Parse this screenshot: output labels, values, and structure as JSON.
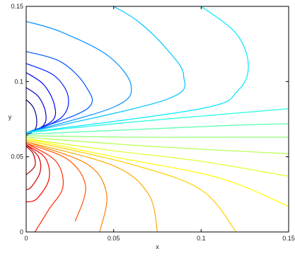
{
  "chart_data": {
    "type": "contour",
    "title": "",
    "xlabel": "x",
    "ylabel": "y",
    "xlim": [
      0,
      0.15
    ],
    "ylim": [
      0,
      0.15
    ],
    "x_ticks": [
      {
        "value": 0,
        "label": "0"
      },
      {
        "value": 0.05,
        "label": "0.05"
      },
      {
        "value": 0.1,
        "label": "0.1"
      },
      {
        "value": 0.15,
        "label": "0.15"
      }
    ],
    "y_ticks": [
      {
        "value": 0,
        "label": "0"
      },
      {
        "value": 0.05,
        "label": "0.05"
      },
      {
        "value": 0.1,
        "label": "0.1"
      },
      {
        "value": 0.15,
        "label": "0.15"
      }
    ],
    "grid": false,
    "colormap": "jet",
    "contours": [
      {
        "color": "#00008f",
        "points": [
          [
            0,
            0.088
          ],
          [
            0.004,
            0.083
          ],
          [
            0.006,
            0.075
          ],
          [
            0.005,
            0.068
          ],
          [
            0,
            0.064
          ]
        ]
      },
      {
        "color": "#0000c8",
        "points": [
          [
            0,
            0.096
          ],
          [
            0.007,
            0.09
          ],
          [
            0.011,
            0.08
          ],
          [
            0.01,
            0.071
          ],
          [
            0,
            0.065
          ]
        ]
      },
      {
        "color": "#0000ff",
        "points": [
          [
            0,
            0.106
          ],
          [
            0.01,
            0.098
          ],
          [
            0.016,
            0.085
          ],
          [
            0.015,
            0.074
          ],
          [
            0,
            0.065
          ]
        ]
      },
      {
        "color": "#0020ff",
        "points": [
          [
            0,
            0.112
          ],
          [
            0.016,
            0.104
          ],
          [
            0.024,
            0.09
          ],
          [
            0.02,
            0.076
          ],
          [
            0,
            0.065
          ]
        ]
      },
      {
        "color": "#0055ff",
        "points": [
          [
            0,
            0.12
          ],
          [
            0.02,
            0.113
          ],
          [
            0.034,
            0.097
          ],
          [
            0.035,
            0.082
          ],
          [
            0,
            0.066
          ]
        ]
      },
      {
        "color": "#0090ff",
        "points": [
          [
            0,
            0.14
          ],
          [
            0.02,
            0.133
          ],
          [
            0.047,
            0.117
          ],
          [
            0.06,
            0.097
          ],
          [
            0.05,
            0.083
          ],
          [
            0,
            0.066
          ]
        ]
      },
      {
        "color": "#00c4ff",
        "points": [
          [
            0.05,
            0.15
          ],
          [
            0.064,
            0.14
          ],
          [
            0.08,
            0.122
          ],
          [
            0.09,
            0.104
          ],
          [
            0.08,
            0.088
          ],
          [
            0,
            0.066
          ]
        ]
      },
      {
        "color": "#00e8ff",
        "points": [
          [
            0.1,
            0.15
          ],
          [
            0.12,
            0.132
          ],
          [
            0.127,
            0.111
          ],
          [
            0.121,
            0.094
          ],
          [
            0.1,
            0.082
          ],
          [
            0,
            0.066
          ]
        ]
      },
      {
        "color": "#20ffdf",
        "points": [
          [
            0,
            0.066
          ],
          [
            0.06,
            0.073
          ],
          [
            0.12,
            0.079
          ],
          [
            0.15,
            0.082
          ]
        ]
      },
      {
        "color": "#55ffaa",
        "points": [
          [
            0,
            0.065
          ],
          [
            0.06,
            0.068
          ],
          [
            0.12,
            0.071
          ],
          [
            0.15,
            0.072
          ]
        ]
      },
      {
        "color": "#8fff6f",
        "points": [
          [
            0,
            0.064
          ],
          [
            0.06,
            0.063
          ],
          [
            0.12,
            0.063
          ],
          [
            0.15,
            0.063
          ]
        ]
      },
      {
        "color": "#b5ff4a",
        "points": [
          [
            0,
            0.063
          ],
          [
            0.07,
            0.057
          ],
          [
            0.15,
            0.052
          ]
        ]
      },
      {
        "color": "#dfff20",
        "points": [
          [
            0,
            0.062
          ],
          [
            0.05,
            0.054
          ],
          [
            0.1,
            0.047
          ],
          [
            0.15,
            0.037
          ]
        ]
      },
      {
        "color": "#ffff00",
        "points": [
          [
            0,
            0.062
          ],
          [
            0.05,
            0.05
          ],
          [
            0.11,
            0.036
          ],
          [
            0.15,
            0.017
          ]
        ]
      },
      {
        "color": "#ffd000",
        "points": [
          [
            0,
            0.061
          ],
          [
            0.06,
            0.045
          ],
          [
            0.1,
            0.028
          ],
          [
            0.12,
            0
          ]
        ]
      },
      {
        "color": "#ffaa00",
        "points": [
          [
            0,
            0.06
          ],
          [
            0.05,
            0.044
          ],
          [
            0.07,
            0.025
          ],
          [
            0.075,
            0
          ]
        ]
      },
      {
        "color": "#ff8000",
        "points": [
          [
            0,
            0.06
          ],
          [
            0.035,
            0.045
          ],
          [
            0.046,
            0.025
          ],
          [
            0.042,
            0
          ]
        ]
      },
      {
        "color": "#ff5500",
        "points": [
          [
            0,
            0.059
          ],
          [
            0.024,
            0.048
          ],
          [
            0.034,
            0.03
          ],
          [
            0.028,
            0.007
          ]
        ]
      },
      {
        "color": "#ff2a00",
        "points": [
          [
            0,
            0.059
          ],
          [
            0.017,
            0.047
          ],
          [
            0.021,
            0.03
          ],
          [
            0.013,
            0.015
          ],
          [
            0.005,
            0
          ]
        ]
      },
      {
        "color": "#ff0000",
        "points": [
          [
            0,
            0.058
          ],
          [
            0.011,
            0.049
          ],
          [
            0.013,
            0.035
          ],
          [
            0.006,
            0.022
          ],
          [
            0,
            0.02
          ]
        ]
      },
      {
        "color": "#d40000",
        "points": [
          [
            0,
            0.058
          ],
          [
            0.007,
            0.05
          ],
          [
            0.008,
            0.04
          ],
          [
            0.003,
            0.03
          ],
          [
            0,
            0.028
          ]
        ]
      },
      {
        "color": "#aa0000",
        "points": [
          [
            0,
            0.057
          ],
          [
            0.004,
            0.052
          ],
          [
            0.005,
            0.044
          ],
          [
            0,
            0.038
          ]
        ]
      }
    ]
  }
}
